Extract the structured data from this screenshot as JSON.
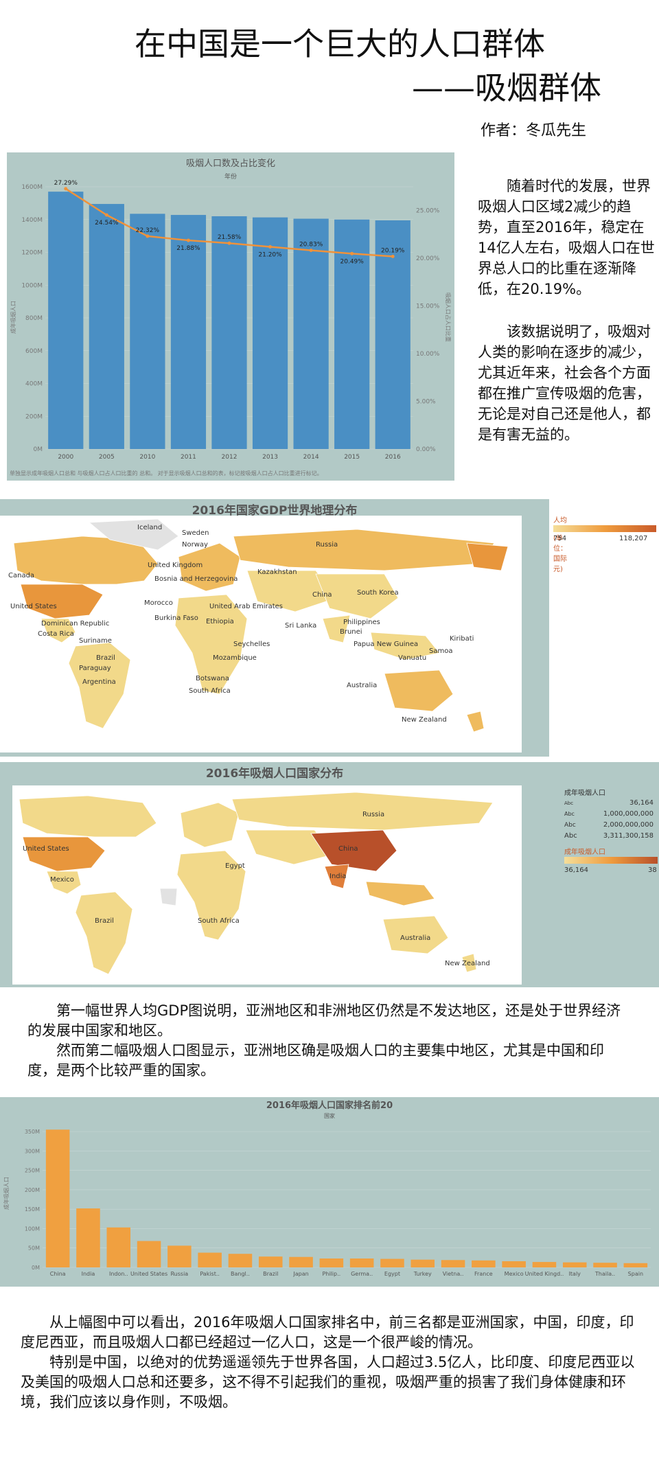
{
  "header": {
    "title": "在中国是一个巨大的人口群体",
    "subtitle": "——吸烟群体",
    "author": "作者：冬瓜先生"
  },
  "side_text": {
    "p1": "随着时代的发展，世界吸烟人口区域2减少的趋势，直至2016年，稳定在14亿人左右，吸烟人口在世界总人口的比重在逐渐降低，在20.19%。",
    "p2": "该数据说明了，吸烟对人类的影响在逐步的减少，尤其近年来，社会各个方面都在推广宣传吸烟的危害，无论是对自己还是他人，都是有害无益的。"
  },
  "map1": {
    "title": "2016年国家GDP世界地理分布",
    "legend_title": "人均GDP (单位：国际元)",
    "legend_min": "754",
    "legend_max": "118,207",
    "labels": [
      "Canada",
      "United States",
      "Iceland",
      "Sweden",
      "Norway",
      "Russia",
      "United Kingdom",
      "Bosnia and Herzegovina",
      "Kazakhstan",
      "Morocco",
      "China",
      "South Korea",
      "United Arab Emirates",
      "Dominican Republic",
      "Costa Rica",
      "Burkina Faso",
      "Ethiopia",
      "Philippines",
      "Sri Lanka",
      "Brunei",
      "Suriname",
      "Brazil",
      "Seychelles",
      "Papua New Guinea",
      "Kiribati",
      "Paraguay",
      "Mozambique",
      "Vanuatu",
      "Samoa",
      "Argentina",
      "Botswana",
      "South Africa",
      "Australia",
      "New Zealand"
    ]
  },
  "map2": {
    "title": "2016年吸烟人口国家分布",
    "legend_title": "成年吸烟人口",
    "size_legend": [
      "36,164",
      "1,000,000,000",
      "2,000,000,000",
      "3,311,300,158"
    ],
    "size_prefix": [
      "Abc",
      "Abc",
      "Abc",
      "Abc"
    ],
    "color_title": "成年吸烟人口",
    "color_min": "36,164",
    "color_max": "38",
    "labels": [
      "Russia",
      "United States",
      "China",
      "Brazil",
      "Australia",
      "New Zealand",
      "Mexico",
      "Egypt",
      "India",
      "South Africa"
    ]
  },
  "para1": {
    "p1": "第一幅世界人均GDP图说明，亚洲地区和非洲地区仍然是不发达地区，还是处于世界经济的发展中国家和地区。",
    "p2": "然而第二幅吸烟人口图显示，亚洲地区确是吸烟人口的主要集中地区，尤其是中国和印度，是两个比较严重的国家。"
  },
  "para2": {
    "p1": "从上幅图中可以看出，2016年吸烟人口国家排名中，前三名都是亚洲国家，中国，印度，印度尼西亚，而且吸烟人口都已经超过一亿人口，这是一个很严峻的情况。",
    "p2": "特别是中国，以绝对的优势遥遥领先于世界各国，人口超过3.5亿人，比印度、印度尼西亚以及美国的吸烟人口总和还要多，这不得不引起我们的重视，吸烟严重的损害了我们身体健康和环境，我们应该以身作则，不吸烟。"
  },
  "colors": {
    "panel_bg": "#b2c9c6",
    "bar_blue": "#4a8fc4",
    "line_orange": "#f0923a",
    "bar_orange": "#f0a040"
  },
  "chart_data": [
    {
      "type": "bar",
      "title": "吸烟人口数及占比变化",
      "subtitle": "年份",
      "ylabel": "成年吸烟人口",
      "y2label": "吸烟人口占人口比重",
      "categories": [
        "2000",
        "2005",
        "2010",
        "2011",
        "2012",
        "2013",
        "2014",
        "2015",
        "2016"
      ],
      "series": [
        {
          "values": [
            1570,
            1495,
            1435,
            1428,
            1420,
            1413,
            1405,
            1400,
            1395
          ],
          "unit": "M"
        },
        {
          "type": "line",
          "values": [
            27.29,
            24.54,
            22.32,
            21.88,
            21.58,
            21.2,
            20.83,
            20.49,
            20.19
          ],
          "labels": [
            "27.29%",
            "24.54%",
            "22.32%",
            "21.88%",
            "21.58%",
            "21.20%",
            "20.83%",
            "20.49%",
            "20.19%"
          ]
        }
      ],
      "y_ticks": [
        "0M",
        "200M",
        "400M",
        "600M",
        "800M",
        "1000M",
        "1200M",
        "1400M",
        "1600M"
      ],
      "ylim": [
        0,
        1600
      ],
      "y2_ticks": [
        "0.00%",
        "5.00%",
        "10.00%",
        "15.00%",
        "20.00%",
        "25.00%"
      ],
      "y2lim": [
        0,
        27.5
      ],
      "footnote": "单独显示成年吸烟人口总和 与吸烟人口占人口比重的 总和。 对于显示吸烟人口总和的表，标记按吸烟人口占人口比重进行标记。"
    },
    {
      "type": "bar",
      "title": "2016年吸烟人口国家排名前20",
      "subtitle": "国家",
      "ylabel": "成年吸烟人口",
      "categories": [
        "China",
        "India",
        "Indon..",
        "United States",
        "Russia",
        "Pakist..",
        "Bangl..",
        "Brazil",
        "Japan",
        "Philip..",
        "Germa..",
        "Egypt",
        "Turkey",
        "Vietna..",
        "France",
        "Mexico",
        "United Kingd..",
        "Italy",
        "Thaila..",
        "Spain"
      ],
      "values": [
        355,
        152,
        103,
        68,
        56,
        38,
        35,
        28,
        27,
        23,
        23,
        22,
        20,
        19,
        18,
        16,
        14,
        13,
        12,
        11
      ],
      "y_ticks": [
        "0M",
        "50M",
        "100M",
        "150M",
        "200M",
        "250M",
        "300M",
        "350M"
      ],
      "ylim": [
        0,
        375
      ]
    }
  ]
}
